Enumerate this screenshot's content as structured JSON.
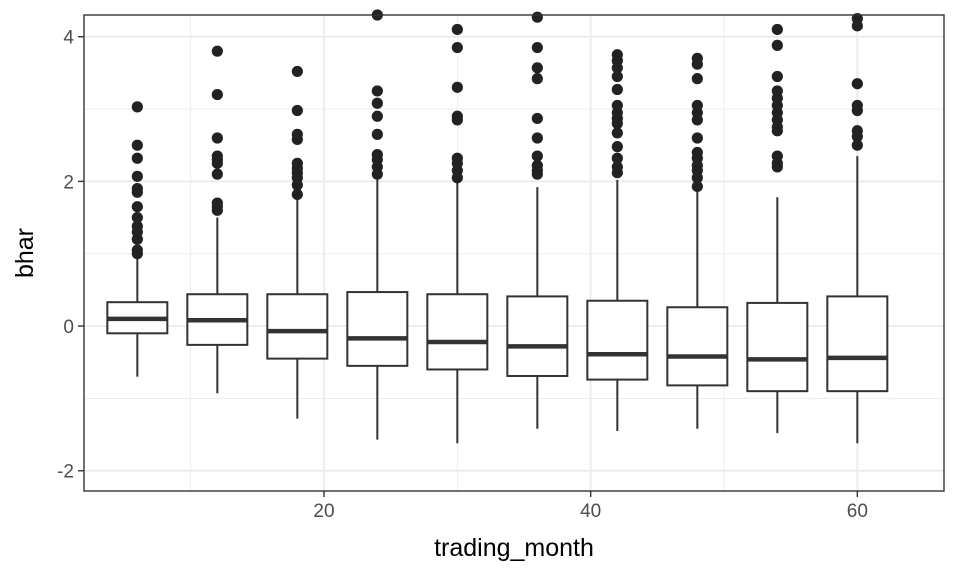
{
  "chart_data": {
    "type": "boxplot",
    "xlabel": "trading_month",
    "ylabel": "bhar",
    "xlim": [
      2,
      66.5
    ],
    "ylim": [
      -2.28,
      4.3
    ],
    "x_ticks": [
      20,
      40,
      60
    ],
    "x_tick_labels": [
      "20",
      "40",
      "60"
    ],
    "y_ticks": [
      -2,
      0,
      2,
      4
    ],
    "y_tick_labels": [
      "-2",
      "0",
      "2",
      "4"
    ],
    "grid": true,
    "theme": "bw",
    "box_width": 4.5,
    "colors": {
      "box_line": "#333333",
      "point": "#222222",
      "grid": "#ebebeb",
      "panel_border": "#333333"
    },
    "boxes": [
      {
        "x": 6,
        "lower_whisker": -0.7,
        "q1": -0.1,
        "median": 0.1,
        "q3": 0.33,
        "upper_whisker": 0.97,
        "outliers": [
          1.0,
          1.05,
          1.2,
          1.3,
          1.38,
          1.5,
          1.65,
          1.85,
          1.9,
          2.07,
          2.32,
          2.5,
          3.03
        ]
      },
      {
        "x": 12,
        "lower_whisker": -0.93,
        "q1": -0.26,
        "median": 0.08,
        "q3": 0.44,
        "upper_whisker": 1.5,
        "outliers": [
          1.6,
          1.65,
          1.7,
          2.1,
          2.25,
          2.3,
          2.35,
          2.6,
          3.2,
          3.8
        ]
      },
      {
        "x": 18,
        "lower_whisker": -1.28,
        "q1": -0.45,
        "median": -0.07,
        "q3": 0.44,
        "upper_whisker": 1.75,
        "outliers": [
          1.82,
          1.95,
          2.05,
          2.12,
          2.18,
          2.25,
          2.58,
          2.65,
          2.98,
          3.52
        ]
      },
      {
        "x": 24,
        "lower_whisker": -1.57,
        "q1": -0.55,
        "median": -0.17,
        "q3": 0.47,
        "upper_whisker": 2.05,
        "outliers": [
          2.1,
          2.2,
          2.3,
          2.37,
          2.65,
          2.9,
          3.08,
          3.25,
          4.3
        ]
      },
      {
        "x": 30,
        "lower_whisker": -1.62,
        "q1": -0.6,
        "median": -0.22,
        "q3": 0.44,
        "upper_whisker": 2.02,
        "outliers": [
          2.05,
          2.15,
          2.25,
          2.32,
          2.85,
          2.9,
          3.3,
          3.85,
          4.1
        ]
      },
      {
        "x": 36,
        "lower_whisker": -1.42,
        "q1": -0.69,
        "median": -0.28,
        "q3": 0.41,
        "upper_whisker": 1.92,
        "outliers": [
          2.1,
          2.15,
          2.22,
          2.35,
          2.6,
          2.87,
          3.42,
          3.57,
          3.85,
          4.27
        ]
      },
      {
        "x": 42,
        "lower_whisker": -1.45,
        "q1": -0.74,
        "median": -0.39,
        "q3": 0.35,
        "upper_whisker": 2.02,
        "outliers": [
          2.12,
          2.2,
          2.32,
          2.48,
          2.67,
          2.8,
          2.87,
          2.95,
          3.05,
          3.27,
          3.45,
          3.57,
          3.67,
          3.75
        ]
      },
      {
        "x": 48,
        "lower_whisker": -1.42,
        "q1": -0.82,
        "median": -0.42,
        "q3": 0.26,
        "upper_whisker": 1.88,
        "outliers": [
          1.93,
          2.05,
          2.15,
          2.22,
          2.32,
          2.4,
          2.6,
          2.85,
          2.95,
          3.05,
          3.42,
          3.62,
          3.7
        ]
      },
      {
        "x": 54,
        "lower_whisker": -1.48,
        "q1": -0.9,
        "median": -0.46,
        "q3": 0.32,
        "upper_whisker": 1.78,
        "outliers": [
          2.2,
          2.25,
          2.35,
          2.7,
          2.75,
          2.85,
          2.95,
          3.05,
          3.15,
          3.25,
          3.45,
          3.88,
          4.1
        ]
      },
      {
        "x": 60,
        "lower_whisker": -1.62,
        "q1": -0.9,
        "median": -0.44,
        "q3": 0.41,
        "upper_whisker": 2.35,
        "outliers": [
          2.5,
          2.62,
          2.7,
          2.98,
          3.05,
          3.35,
          4.15,
          4.25
        ]
      }
    ]
  }
}
